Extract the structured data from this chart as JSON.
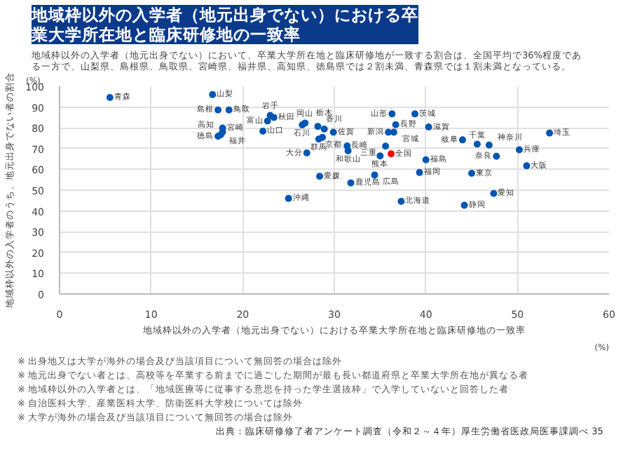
{
  "chart_data": {
    "type": "scatter",
    "title": "地域枠以外の入学者（地元出身でない）における卒業大学所在地と臨床研修地の一致率",
    "subtitle": "地域枠以外の入学者（地元出身でない）において、卒業大学所在地と臨床研修地が一致する割合は、全国平均で36%程度である一方で、山梨県、島根県、鳥取県、宮崎県、福井県、高知県、徳島県では２割未満、青森県では１割未満となっている。",
    "xlabel": "地域枠以外の入学者（地元出身でない）における卒業大学所在地と臨床研修地の一致率",
    "ylabel": "地域枠以外の入学者のうち、地元出身でない者の割合",
    "xlim": [
      0,
      60
    ],
    "xticks": [
      0,
      10,
      20,
      30,
      40,
      50,
      60
    ],
    "ylim": [
      0,
      100
    ],
    "yticks": [
      0,
      10,
      20,
      30,
      40,
      50,
      60,
      70,
      80,
      90,
      100
    ],
    "grid": true,
    "marker": "circle",
    "legend": false,
    "series": [
      {
        "color": "#0056b3",
        "x": [
          5.5,
          16.7,
          17.3,
          18.5,
          17.8,
          17.3,
          17.6,
          17.8,
          23.0,
          23.4,
          22.7,
          22.2,
          26.8,
          26.5,
          28.2,
          28.9,
          28.3,
          28.7,
          29.9,
          27.0,
          31.4,
          31.5,
          28.4,
          31.8,
          25.0,
          36.3,
          38.8,
          36.7,
          35.9,
          36.5,
          35.6,
          35.0,
          34.4,
          37.3,
          40.3,
          44.0,
          45.6,
          46.9,
          53.5,
          50.2,
          47.7,
          51.0,
          40.0,
          39.3,
          45.0,
          47.4,
          44.2
        ],
        "values": [
          94.6,
          96.0,
          88.6,
          88.6,
          79.9,
          75.9,
          76.7,
          78.0,
          86.0,
          85.0,
          83.3,
          78.4,
          82.3,
          81.4,
          80.7,
          79.4,
          74.6,
          75.4,
          77.9,
          67.9,
          71.3,
          68.9,
          56.7,
          53.5,
          46.0,
          86.7,
          86.7,
          81.5,
          77.9,
          77.9,
          71.2,
          66.5,
          57.3,
          44.6,
          80.4,
          74.2,
          72.1,
          71.7,
          77.5,
          69.4,
          66.3,
          61.7,
          64.6,
          58.5,
          58.1,
          48.4,
          42.7
        ]
      },
      {
        "name": "全国",
        "color": "#ff0000",
        "x": [
          36.2
        ],
        "values": [
          67.5
        ]
      }
    ],
    "annotations": [
      "(%)",
      "(%)",
      "※ 出身地又は大学が海外の場合及び当該項目について無回答の場合は除外",
      "※ 地元出身でない者とは、高校等を卒業する前までに過ごした期間が最も長い都道府県と卒業大学所在地が異なる者",
      "※ 地域枠以外の入学者とは、「地域医療等に従事する意思を持った学生選抜枠」で入学していないと回答した者",
      "※ 自治医科大学、産業医科大学、防衛医科大学校については除外",
      "※ 大学が海外の場合及び当該項目について無回答の場合は除外",
      "出典：臨床研修修了者アンケート調査（令和２～４年）厚生労働省医政局医事課調べ",
      "35",
      {
        "text": "青森",
        "x": 5.5,
        "y": 94.6
      },
      {
        "text": "山梨",
        "x": 16.7,
        "y": 96.0
      },
      {
        "text": "島根",
        "x": 17.3,
        "y": 88.6
      },
      {
        "text": "鳥取",
        "x": 18.5,
        "y": 88.6
      },
      {
        "text": "宮崎",
        "x": 17.8,
        "y": 79.9
      },
      {
        "text": "徳島",
        "x": 17.3,
        "y": 75.9
      },
      {
        "text": "福井",
        "x": 17.6,
        "y": 76.7
      },
      {
        "text": "高知",
        "x": 17.8,
        "y": 78.0
      },
      {
        "text": "岩手",
        "x": 23.0,
        "y": 86.0
      },
      {
        "text": "秋田",
        "x": 23.4,
        "y": 85.0
      },
      {
        "text": "富山",
        "x": 22.7,
        "y": 83.3
      },
      {
        "text": "山口",
        "x": 22.2,
        "y": 78.4
      },
      {
        "text": "岡山",
        "x": 26.8,
        "y": 82.3
      },
      {
        "text": "石川",
        "x": 26.5,
        "y": 81.4
      },
      {
        "text": "香川",
        "x": 28.2,
        "y": 80.7
      },
      {
        "text": "栃木",
        "x": 28.9,
        "y": 79.4
      },
      {
        "text": "群馬",
        "x": 28.3,
        "y": 74.6
      },
      {
        "text": "京都",
        "x": 28.7,
        "y": 75.4
      },
      {
        "text": "佐賀",
        "x": 29.9,
        "y": 77.9
      },
      {
        "text": "大分",
        "x": 27.0,
        "y": 67.9
      },
      {
        "text": "長崎",
        "x": 31.4,
        "y": 71.3
      },
      {
        "text": "和歌山",
        "x": 31.5,
        "y": 68.9
      },
      {
        "text": "愛媛",
        "x": 28.4,
        "y": 56.7
      },
      {
        "text": "鹿児島",
        "x": 31.8,
        "y": 53.5
      },
      {
        "text": "沖縄",
        "x": 25.0,
        "y": 46.0
      },
      {
        "text": "山形",
        "x": 36.3,
        "y": 86.7
      },
      {
        "text": "茨城",
        "x": 38.8,
        "y": 86.7
      },
      {
        "text": "長野",
        "x": 36.7,
        "y": 81.5
      },
      {
        "text": "新潟",
        "x": 35.9,
        "y": 77.9
      },
      {
        "text": "宮城",
        "x": 36.5,
        "y": 77.9
      },
      {
        "text": "三重",
        "x": 35.6,
        "y": 71.2
      },
      {
        "text": "熊本",
        "x": 35.0,
        "y": 66.5
      },
      {
        "text": "広島",
        "x": 34.4,
        "y": 57.3
      },
      {
        "text": "北海道",
        "x": 37.3,
        "y": 44.6
      },
      {
        "text": "滋賀",
        "x": 40.3,
        "y": 80.4
      },
      {
        "text": "岐阜",
        "x": 44.0,
        "y": 74.2
      },
      {
        "text": "千葉",
        "x": 45.6,
        "y": 72.1
      },
      {
        "text": "神奈川",
        "x": 46.9,
        "y": 71.7
      },
      {
        "text": "埼玉",
        "x": 53.5,
        "y": 77.5
      },
      {
        "text": "兵庫",
        "x": 50.2,
        "y": 69.4
      },
      {
        "text": "奈良",
        "x": 47.7,
        "y": 66.3
      },
      {
        "text": "大阪",
        "x": 51.0,
        "y": 61.7
      },
      {
        "text": "福島",
        "x": 40.0,
        "y": 64.6
      },
      {
        "text": "福岡",
        "x": 39.3,
        "y": 58.5
      },
      {
        "text": "東京",
        "x": 45.0,
        "y": 58.1
      },
      {
        "text": "愛知",
        "x": 47.4,
        "y": 48.4
      },
      {
        "text": "静岡",
        "x": 44.2,
        "y": 42.7
      }
    ]
  }
}
